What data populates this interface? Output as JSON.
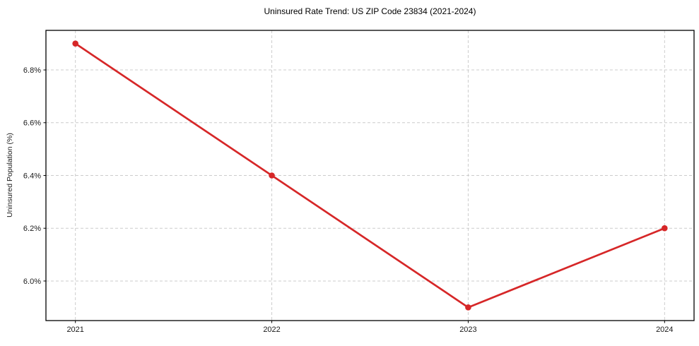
{
  "chart_data": {
    "type": "line",
    "title": "Uninsured Rate Trend: US ZIP Code 23834 (2021-2024)",
    "xlabel": "",
    "ylabel": "Uninsured Population (%)",
    "x": [
      2021,
      2022,
      2023,
      2024
    ],
    "series": [
      {
        "name": "Uninsured Rate",
        "values": [
          6.9,
          6.4,
          5.9,
          6.2
        ]
      }
    ],
    "x_ticks": [
      2021,
      2022,
      2023,
      2024
    ],
    "x_tick_labels": [
      "2021",
      "2022",
      "2023",
      "2024"
    ],
    "y_ticks": [
      6.0,
      6.2,
      6.4,
      6.6,
      6.8
    ],
    "y_tick_labels": [
      "6.0%",
      "6.2%",
      "6.4%",
      "6.6%",
      "6.8%"
    ],
    "xlim": [
      2020.85,
      2024.15
    ],
    "ylim": [
      5.85,
      6.95
    ],
    "grid": true,
    "grid_style": "dashed",
    "legend": "none",
    "colors": {
      "line": "#d62728",
      "marker": "#d62728",
      "grid": "#cccccc",
      "spine": "#000000",
      "tick_text": "#1a1a1a",
      "background": "#ffffff"
    }
  }
}
